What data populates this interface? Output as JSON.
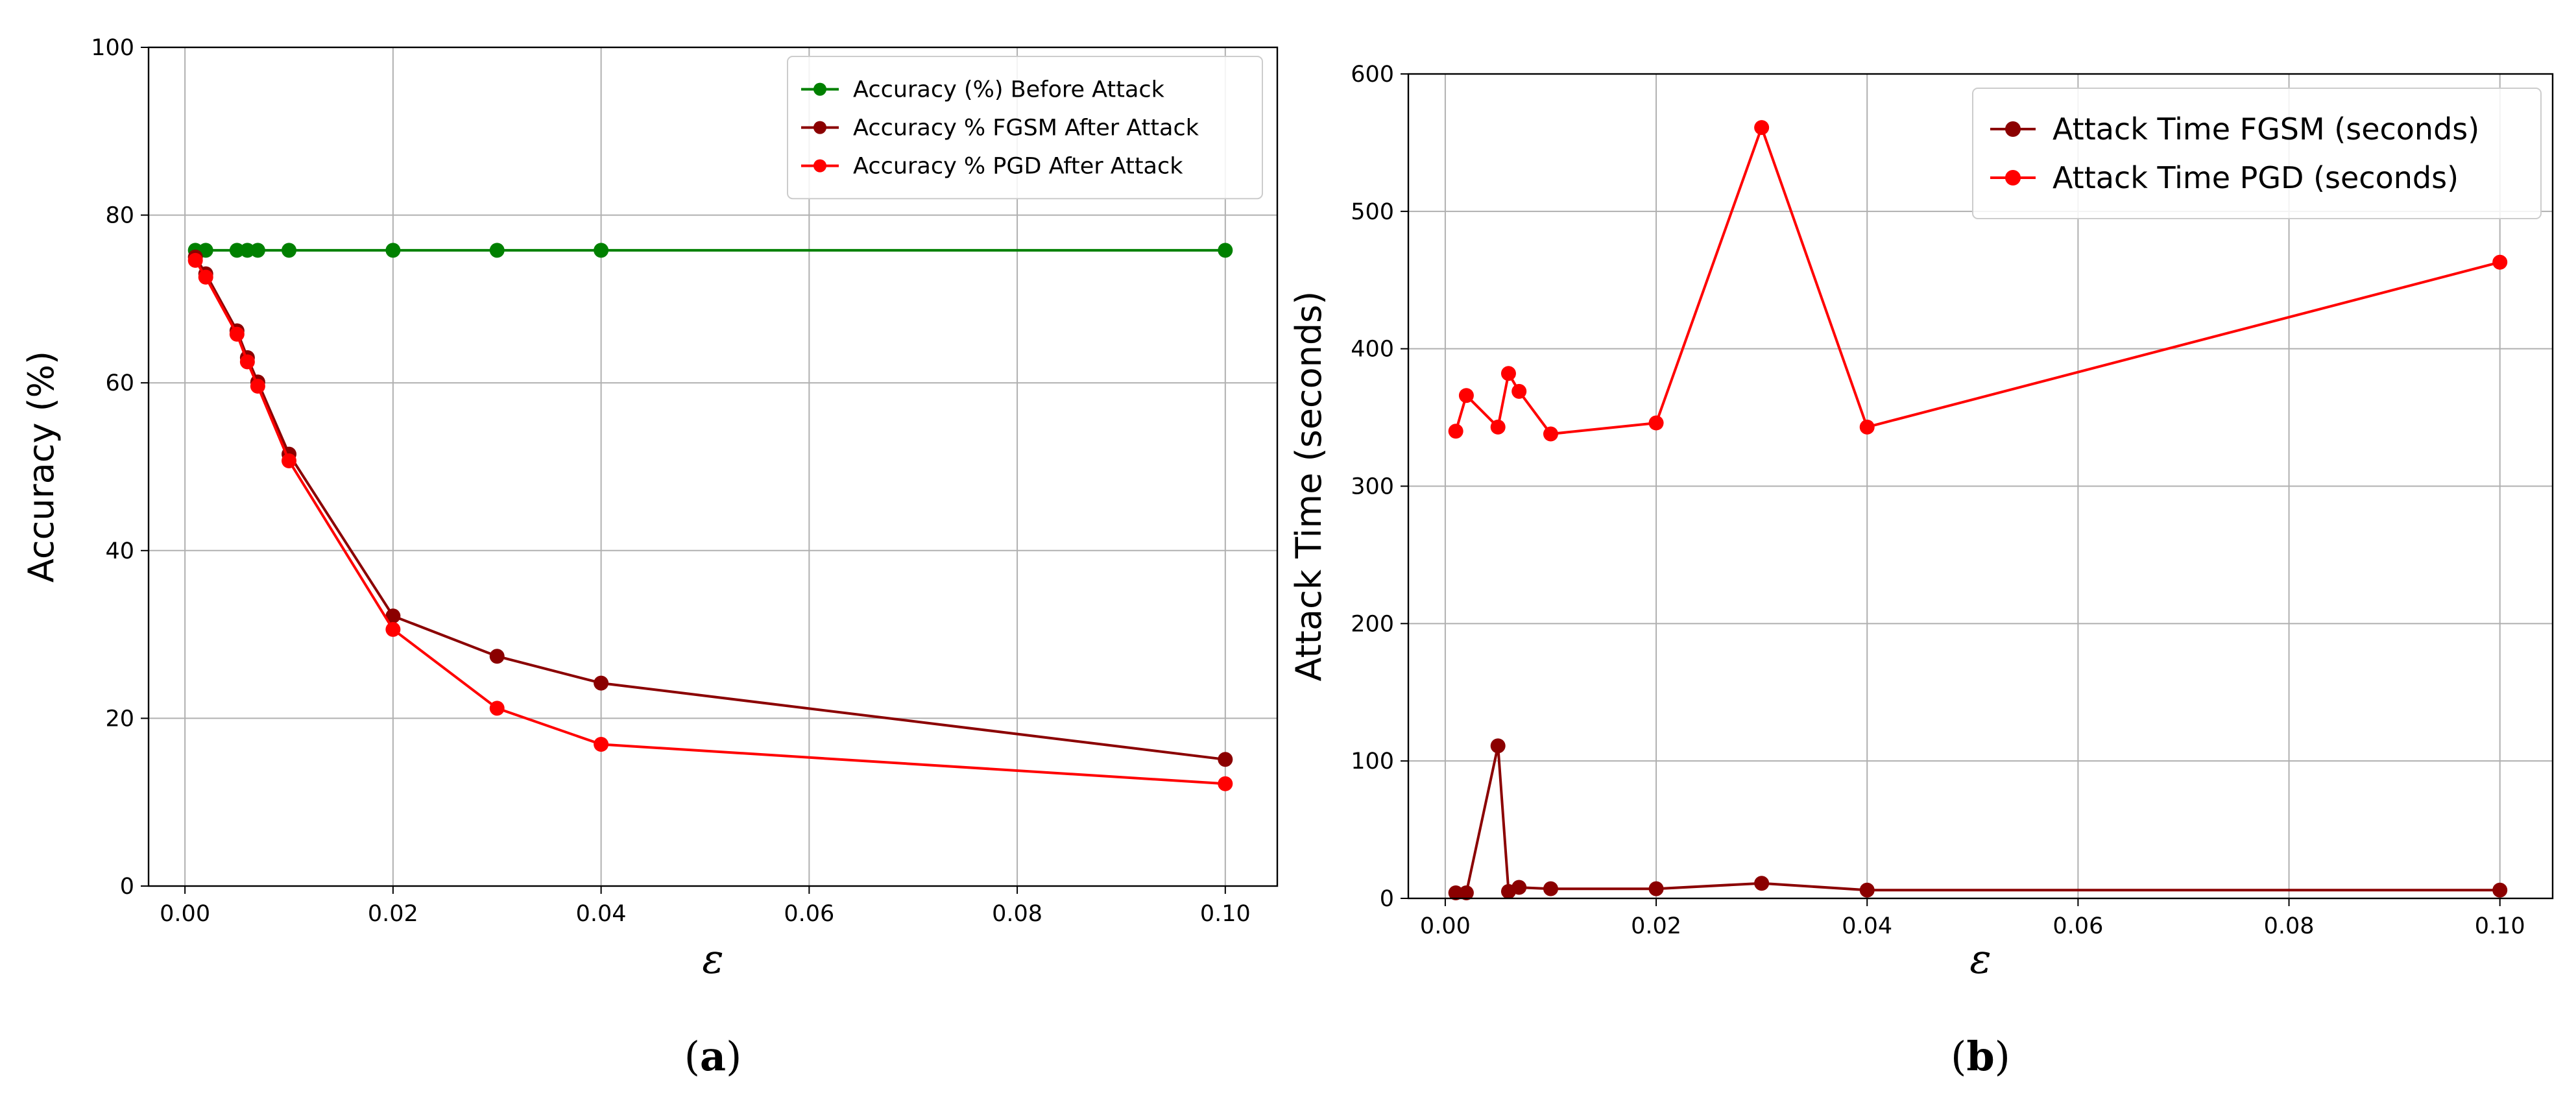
{
  "chart_data": [
    {
      "type": "line",
      "caption": "(a)",
      "caption_letter": "a",
      "xlabel": "ε",
      "ylabel": "Accuracy (%)",
      "xlim": [
        -0.0035,
        0.105
      ],
      "ylim": [
        0,
        100
      ],
      "xticks": [
        0.0,
        0.02,
        0.04,
        0.06,
        0.08,
        0.1
      ],
      "xtick_labels": [
        "0.00",
        "0.02",
        "0.04",
        "0.06",
        "0.08",
        "0.10"
      ],
      "yticks": [
        0,
        20,
        40,
        60,
        80,
        100
      ],
      "ytick_labels": [
        "0",
        "20",
        "40",
        "60",
        "80",
        "100"
      ],
      "grid": true,
      "legend_position": "top-right",
      "x": [
        0.001,
        0.002,
        0.005,
        0.006,
        0.007,
        0.01,
        0.02,
        0.03,
        0.04,
        0.1
      ],
      "series": [
        {
          "name": "Accuracy (%) Before Attack",
          "color": "#008000",
          "values": [
            75.8,
            75.8,
            75.8,
            75.8,
            75.8,
            75.8,
            75.8,
            75.8,
            75.8,
            75.8
          ]
        },
        {
          "name": "Accuracy % FGSM After Attack",
          "color": "#8b0000",
          "values": [
            75.0,
            73.0,
            66.2,
            63.0,
            60.1,
            51.5,
            32.2,
            27.4,
            24.2,
            15.1
          ]
        },
        {
          "name": "Accuracy % PGD After Attack",
          "color": "#ff0000",
          "values": [
            74.6,
            72.6,
            65.8,
            62.5,
            59.6,
            50.7,
            30.6,
            21.2,
            16.9,
            12.2
          ]
        }
      ]
    },
    {
      "type": "line",
      "caption": "(b)",
      "caption_letter": "b",
      "xlabel": "ε",
      "ylabel": "Attack Time (seconds)",
      "xlim": [
        -0.0035,
        0.105
      ],
      "ylim": [
        0,
        600
      ],
      "xticks": [
        0.0,
        0.02,
        0.04,
        0.06,
        0.08,
        0.1
      ],
      "xtick_labels": [
        "0.00",
        "0.02",
        "0.04",
        "0.06",
        "0.08",
        "0.10"
      ],
      "yticks": [
        0,
        100,
        200,
        300,
        400,
        500,
        600
      ],
      "ytick_labels": [
        "0",
        "100",
        "200",
        "300",
        "400",
        "500",
        "600"
      ],
      "grid": true,
      "legend_position": "top-right",
      "x": [
        0.001,
        0.002,
        0.005,
        0.006,
        0.007,
        0.01,
        0.02,
        0.03,
        0.04,
        0.1
      ],
      "series": [
        {
          "name": "Attack Time FGSM (seconds)",
          "color": "#8b0000",
          "values": [
            4,
            4,
            111,
            5,
            8,
            7,
            7,
            11,
            6,
            6
          ]
        },
        {
          "name": "Attack Time PGD (seconds)",
          "color": "#ff0000",
          "values": [
            340,
            366,
            343,
            382,
            369,
            338,
            346,
            561,
            343,
            463
          ]
        }
      ]
    }
  ]
}
